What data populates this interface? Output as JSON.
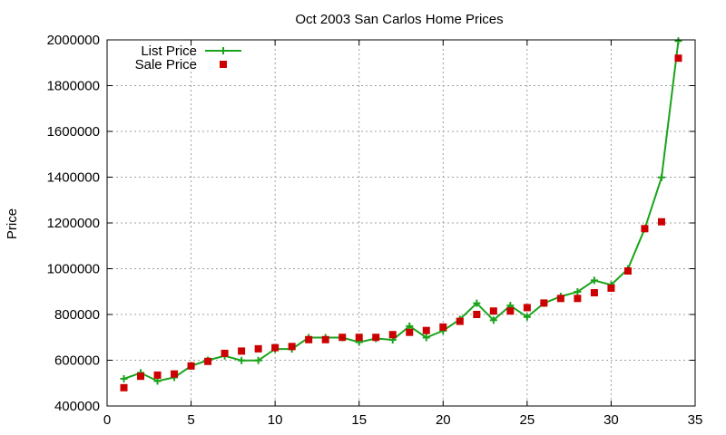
{
  "chart_data": {
    "type": "line",
    "title": "Oct 2003 San Carlos Home Prices",
    "xlabel": "",
    "ylabel": "Price",
    "xlim": [
      0,
      35
    ],
    "ylim": [
      400000,
      2000000
    ],
    "xticks": [
      0,
      5,
      10,
      15,
      20,
      25,
      30,
      35
    ],
    "yticks": [
      400000,
      600000,
      800000,
      1000000,
      1200000,
      1400000,
      1600000,
      1800000,
      2000000
    ],
    "grid": true,
    "legend_position": "top-left",
    "colors": {
      "list": "#1aa31a",
      "sale": "#cc0000"
    },
    "x": [
      1,
      2,
      3,
      4,
      5,
      6,
      7,
      8,
      9,
      10,
      11,
      12,
      13,
      14,
      15,
      16,
      17,
      18,
      19,
      20,
      21,
      22,
      23,
      24,
      25,
      26,
      27,
      28,
      29,
      30,
      31,
      32,
      33,
      34
    ],
    "series": [
      {
        "name": "List Price",
        "style": "lines+points",
        "marker": "plus",
        "values": [
          519000,
          545000,
          509000,
          525000,
          575000,
          600000,
          619000,
          599000,
          599000,
          649000,
          649000,
          699000,
          699000,
          699000,
          679000,
          695000,
          689000,
          749000,
          699000,
          729000,
          779000,
          849000,
          775000,
          839000,
          789000,
          849000,
          879000,
          899000,
          949000,
          929000,
          999000,
          1175000,
          1399000,
          1995000
        ]
      },
      {
        "name": "Sale Price",
        "style": "points",
        "marker": "square",
        "values": [
          480000,
          530000,
          535000,
          540000,
          575000,
          595000,
          630000,
          640000,
          650000,
          655000,
          660000,
          690000,
          690000,
          700000,
          700000,
          700000,
          712000,
          722000,
          730000,
          745000,
          770000,
          800000,
          815000,
          815000,
          830000,
          850000,
          870000,
          870000,
          895000,
          915000,
          990000,
          1175000,
          1205000,
          1920000
        ]
      }
    ]
  }
}
